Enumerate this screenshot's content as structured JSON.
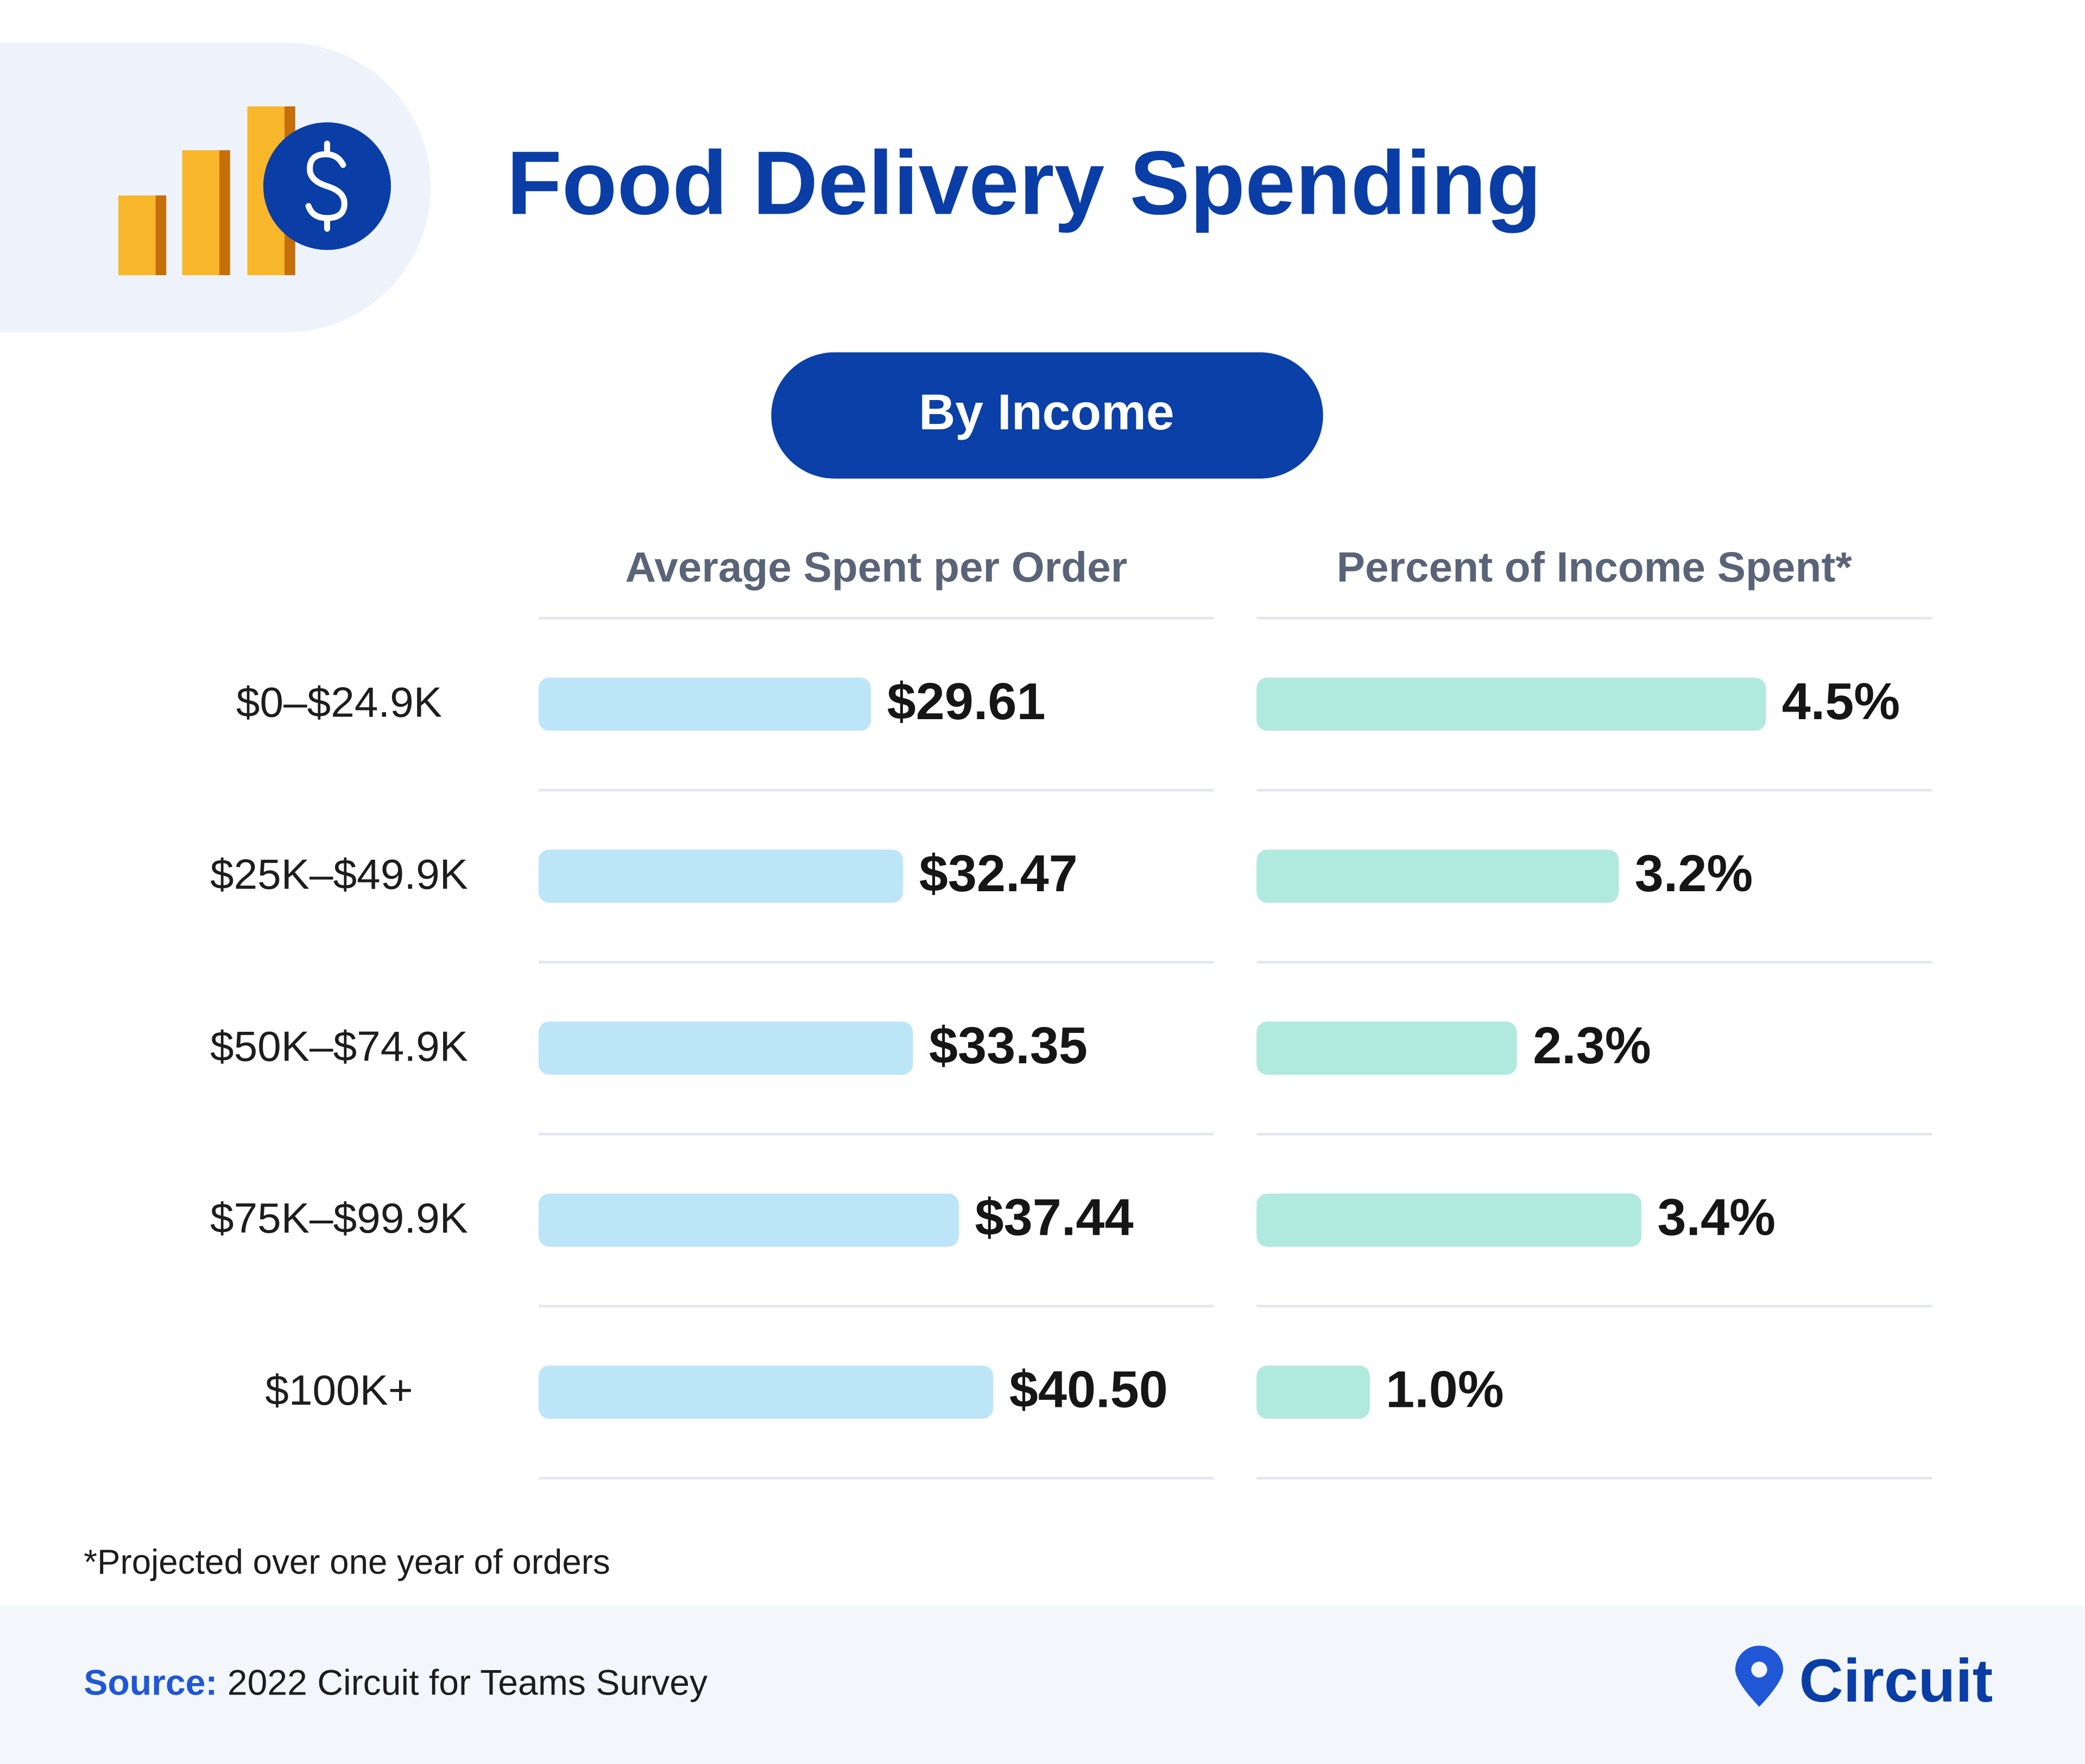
{
  "title": "Food Delivery Spending",
  "subtitle": "By Income",
  "footnote": "*Projected over one year of orders",
  "source_label": "Source:",
  "source": "2022 Circuit for Teams Survey",
  "brand": "Circuit",
  "chart_data": [
    {
      "type": "bar",
      "orientation": "horizontal",
      "title": "Average Spent per Order",
      "categories": [
        "$0–$24.9K",
        "$25K–$49.9K",
        "$50K–$74.9K",
        "$75K–$99.9K",
        "$100K+"
      ],
      "values": [
        29.61,
        32.47,
        33.35,
        37.44,
        40.5
      ],
      "value_labels": [
        "$29.61",
        "$32.47",
        "$33.35",
        "$37.44",
        "$40.50"
      ],
      "color": "#bde5f8"
    },
    {
      "type": "bar",
      "orientation": "horizontal",
      "title": "Percent of Income Spent*",
      "values": [
        4.5,
        3.2,
        2.3,
        3.4,
        1.0
      ],
      "value_labels": [
        "4.5%",
        "3.2%",
        "2.3%",
        "3.4%",
        "1.0%"
      ],
      "color": "#b0e9dd"
    }
  ]
}
